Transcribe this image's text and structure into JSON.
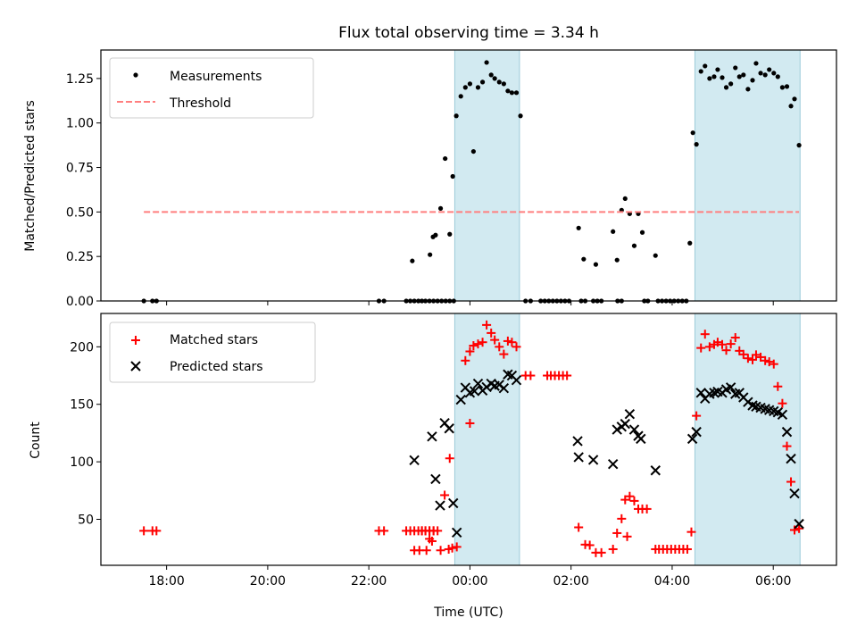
{
  "chart_data": [
    {
      "type": "scatter",
      "title": "Flux total observing time = 3.34 h",
      "xlabel": "",
      "ylabel": "Matched/Predicted stars",
      "x_units": "hours relative to 00:00 UTC",
      "xlim": [
        -7.3,
        7.25
      ],
      "ylim": [
        0.0,
        1.41
      ],
      "yticks": [
        0.0,
        0.25,
        0.5,
        0.75,
        1.0,
        1.25
      ],
      "ytick_labels": [
        "0.00",
        "0.25",
        "0.50",
        "0.75",
        "1.00",
        "1.25"
      ],
      "xticks": [
        -6,
        -4,
        -2,
        0,
        2,
        4,
        6
      ],
      "xtick_labels": [],
      "grid": false,
      "legend_position": "top-left",
      "shaded_intervals": [
        [
          -0.3,
          0.98
        ],
        [
          4.45,
          6.53
        ]
      ],
      "shade_color": "#add8e6",
      "series": [
        {
          "name": "Measurements",
          "kind": "points",
          "color": "#000000",
          "x": [
            -6.45,
            -6.28,
            -6.2,
            -1.8,
            -1.7,
            -0.95,
            -0.88,
            -0.8,
            -0.72,
            -0.64,
            -0.56,
            -0.48,
            -0.4,
            -0.32,
            -1.26,
            -1.18,
            -1.1,
            -1.02,
            -1.14,
            -0.79,
            -0.73,
            -0.68,
            -0.58,
            -0.4,
            -0.49,
            -0.34,
            -0.27,
            -0.18,
            -0.09,
            0.0,
            0.07,
            0.16,
            0.25,
            0.33,
            0.42,
            0.49,
            0.58,
            0.67,
            0.75,
            0.83,
            0.92,
            1.0,
            1.1,
            1.2,
            1.4,
            1.48,
            1.56,
            1.64,
            1.72,
            1.8,
            1.88,
            1.96,
            2.2,
            2.28,
            2.44,
            2.52,
            2.6,
            2.92,
            3.0,
            2.15,
            2.25,
            2.49,
            2.83,
            2.91,
            3.0,
            3.07,
            3.16,
            3.25,
            3.33,
            3.41,
            3.67,
            3.45,
            3.52,
            3.72,
            3.8,
            3.88,
            3.96,
            4.04,
            4.12,
            4.2,
            4.28,
            4.35,
            4.41,
            4.48,
            4.57,
            4.65,
            4.74,
            4.83,
            4.9,
            4.99,
            5.07,
            5.16,
            5.25,
            5.33,
            5.41,
            5.5,
            5.59,
            5.66,
            5.75,
            5.84,
            5.92,
            6.01,
            6.09,
            6.18,
            6.27,
            6.35,
            6.42,
            6.51
          ],
          "y": [
            0,
            0,
            0,
            0,
            0,
            0,
            0,
            0,
            0,
            0,
            0,
            0,
            0,
            0,
            0,
            0,
            0,
            0,
            0.225,
            0.26,
            0.36,
            0.37,
            0.52,
            0.375,
            0.8,
            0.7,
            1.04,
            1.15,
            1.2,
            1.22,
            0.84,
            1.2,
            1.23,
            1.34,
            1.27,
            1.25,
            1.23,
            1.22,
            1.18,
            1.17,
            1.17,
            1.04,
            0,
            0,
            0,
            0,
            0,
            0,
            0,
            0,
            0,
            0,
            0,
            0,
            0,
            0,
            0,
            0,
            0,
            0.41,
            0.235,
            0.205,
            0.39,
            0.23,
            0.51,
            0.575,
            0.49,
            0.31,
            0.49,
            0.385,
            0.255,
            0,
            0,
            0,
            0,
            0,
            0,
            0,
            0,
            0,
            0,
            0.325,
            0.945,
            0.88,
            1.29,
            1.32,
            1.25,
            1.26,
            1.3,
            1.255,
            1.2,
            1.22,
            1.31,
            1.26,
            1.27,
            1.19,
            1.24,
            1.335,
            1.28,
            1.27,
            1.3,
            1.28,
            1.26,
            1.2,
            1.205,
            1.095,
            1.135,
            0.875
          ]
        },
        {
          "name": "Threshold",
          "kind": "dashed-line",
          "color": "#ff7f7f",
          "x": [
            -6.45,
            6.51
          ],
          "y": [
            0.5,
            0.5
          ]
        }
      ]
    },
    {
      "type": "scatter",
      "title": "",
      "xlabel": "Time (UTC)",
      "ylabel": "Count",
      "x_units": "hours relative to 00:00 UTC",
      "xlim": [
        -7.3,
        7.25
      ],
      "ylim": [
        10,
        229
      ],
      "yticks": [
        50,
        100,
        150,
        200
      ],
      "ytick_labels": [
        "50",
        "100",
        "150",
        "200"
      ],
      "xticks": [
        -6,
        -4,
        -2,
        0,
        2,
        4,
        6
      ],
      "xtick_labels": [
        "18:00",
        "20:00",
        "22:00",
        "00:00",
        "02:00",
        "04:00",
        "06:00"
      ],
      "grid": false,
      "legend_position": "top-left",
      "shaded_intervals": [
        [
          -0.3,
          0.98
        ],
        [
          4.45,
          6.53
        ]
      ],
      "shade_color": "#add8e6",
      "series": [
        {
          "name": "Matched stars",
          "marker": "+",
          "color": "#ff0000",
          "x": [
            -6.45,
            -6.28,
            -6.2,
            -1.8,
            -1.7,
            -0.95,
            -0.88,
            -0.8,
            -0.72,
            -1.26,
            -1.18,
            -1.1,
            -1.02,
            -0.95,
            -0.88,
            -0.8,
            -0.72,
            -0.64,
            -1.1,
            -1.0,
            -0.86,
            -0.8,
            -0.75,
            -0.58,
            -0.5,
            -0.4,
            -0.35,
            -0.42,
            -0.26,
            -0.09,
            0.0,
            0.07,
            0.16,
            0.25,
            0.33,
            0.42,
            0.49,
            0.58,
            0.67,
            0.75,
            0.83,
            0.92,
            0.0,
            1.1,
            1.2,
            1.53,
            1.6,
            1.68,
            1.76,
            1.84,
            1.92,
            2.15,
            2.28,
            2.37,
            2.49,
            2.6,
            2.83,
            2.91,
            3.0,
            3.07,
            3.16,
            3.25,
            3.33,
            3.41,
            3.5,
            3.11,
            3.67,
            3.74,
            3.82,
            3.9,
            3.98,
            4.06,
            4.14,
            4.22,
            4.3,
            4.38,
            4.48,
            4.57,
            4.65,
            4.74,
            4.83,
            4.9,
            4.99,
            5.07,
            5.16,
            5.25,
            5.33,
            5.41,
            5.5,
            5.59,
            5.66,
            5.75,
            5.84,
            5.92,
            6.01,
            6.09,
            6.18,
            6.27,
            6.35,
            6.42,
            6.51
          ],
          "y": [
            40,
            40,
            40,
            40,
            40,
            40,
            40,
            40,
            40,
            40,
            40,
            40,
            40,
            40,
            40,
            40,
            40,
            40,
            23,
            23,
            23,
            33,
            31,
            23,
            71,
            103,
            25,
            24,
            26,
            188,
            196,
            201,
            202.5,
            204,
            219,
            212,
            206,
            200,
            193.6,
            205,
            204,
            200,
            133.5,
            175,
            175,
            175,
            175,
            175,
            175,
            175,
            175,
            43,
            28,
            27.5,
            21,
            21,
            24,
            38,
            50.5,
            67,
            70,
            66,
            59,
            59,
            59,
            35,
            24,
            24,
            24,
            24,
            24,
            24,
            24,
            24,
            24,
            39,
            140,
            199,
            211,
            200,
            202,
            204,
            202,
            197,
            202.5,
            208,
            196.5,
            193.4,
            190,
            188.7,
            193,
            191,
            188,
            187,
            185,
            165.5,
            150.8,
            113.6,
            82.6,
            40.7,
            42
          ],
          "x_note": "positions approximate"
        },
        {
          "name": "Predicted stars",
          "marker": "x",
          "color": "#000000",
          "x": [
            -1.1,
            -0.75,
            -0.5,
            -0.41,
            -0.68,
            -0.59,
            -0.33,
            -0.26,
            -0.18,
            -0.09,
            0.0,
            0.09,
            0.16,
            0.25,
            0.33,
            0.42,
            0.49,
            0.58,
            0.67,
            0.75,
            0.83,
            0.92,
            2.15,
            2.13,
            2.44,
            2.83,
            2.91,
            3.0,
            3.07,
            3.16,
            3.25,
            3.33,
            3.38,
            3.67,
            4.4,
            4.48,
            4.57,
            4.65,
            4.74,
            4.83,
            4.9,
            4.99,
            5.07,
            5.16,
            5.25,
            5.33,
            5.41,
            5.5,
            5.59,
            5.66,
            5.75,
            5.84,
            5.92,
            6.01,
            6.09,
            6.18,
            6.27,
            6.35,
            6.42,
            6.51
          ],
          "y": [
            101.4,
            122,
            133.7,
            129,
            85,
            62,
            64,
            38.5,
            154,
            164.5,
            160,
            161.5,
            168,
            162,
            165,
            168,
            166,
            167,
            164,
            176,
            175,
            171,
            104,
            118,
            101.7,
            98,
            128,
            130.5,
            133,
            141.5,
            128,
            122.5,
            120,
            92.5,
            120,
            126,
            160,
            155,
            159,
            160,
            161,
            160,
            163,
            164.7,
            159,
            160,
            156,
            152,
            149,
            148,
            147,
            146,
            145,
            144,
            143,
            141,
            126,
            102.7,
            72.5,
            46
          ]
        }
      ]
    }
  ]
}
